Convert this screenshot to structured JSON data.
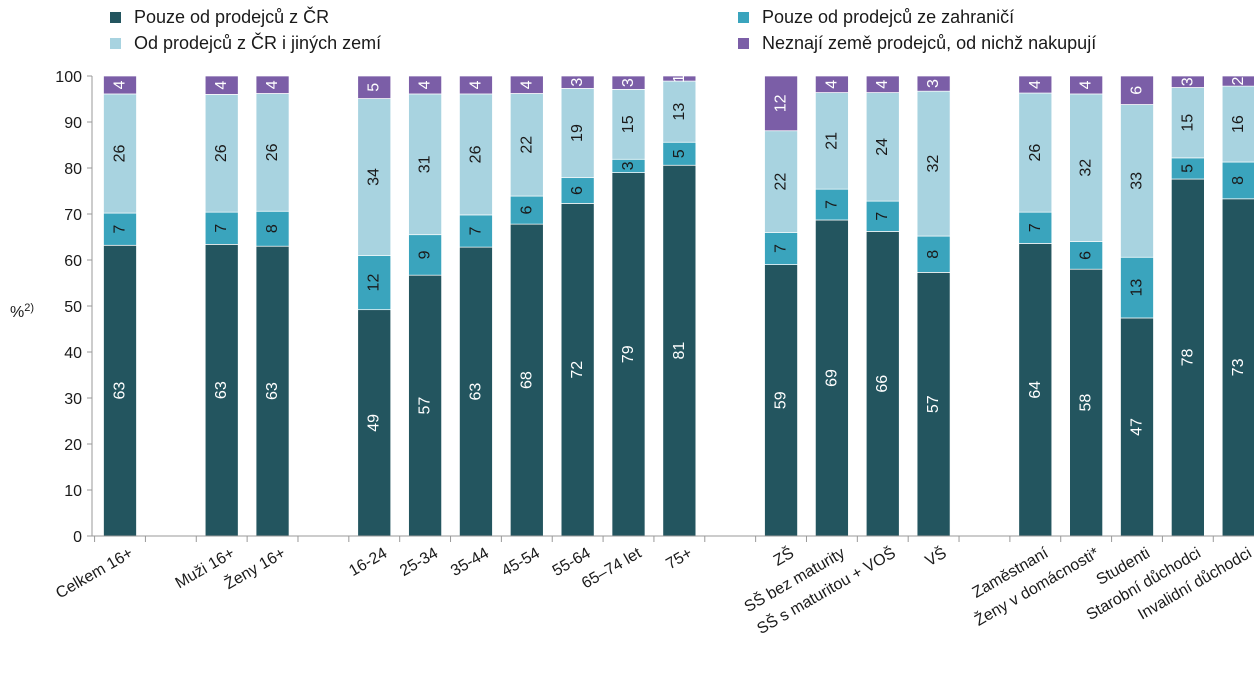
{
  "chart_data": {
    "type": "bar",
    "stacked": true,
    "title": "",
    "xlabel": "",
    "ylabel": "%",
    "ylabel_sup": "2)",
    "ylim": [
      0,
      100
    ],
    "yticks": [
      0,
      10,
      20,
      30,
      40,
      50,
      60,
      70,
      80,
      90,
      100
    ],
    "grid": false,
    "legend_position": "top",
    "categories": [
      "Celkem 16+",
      "Muži 16+",
      "Ženy 16+",
      "16-24",
      "25-34",
      "35-44",
      "45-54",
      "55-64",
      "65–74 let",
      "75+",
      "ZŠ",
      "SŠ bez maturity",
      "SŠ s maturitou + VOŠ",
      "VŠ",
      "Zaměstnaní",
      "Ženy v domácnosti*",
      "Studenti",
      "Starobní důchodci",
      "Invalidní důchodci"
    ],
    "groups": [
      [
        0
      ],
      [
        1,
        2
      ],
      [
        3,
        4,
        5,
        6,
        7,
        8,
        9
      ],
      [
        10,
        11,
        12,
        13
      ],
      [
        14,
        15,
        16,
        17,
        18
      ]
    ],
    "series": [
      {
        "name": "Pouze od prodejců z ČR",
        "color": "#23555f",
        "label_color": "#ffffff",
        "values": [
          63.2,
          63.4,
          63.0,
          49.2,
          56.7,
          62.8,
          67.8,
          72.3,
          79.0,
          80.6,
          59.0,
          68.7,
          66.2,
          57.3,
          63.6,
          58.0,
          47.4,
          77.6,
          73.3
        ],
        "labels": [
          "63",
          "63",
          "63",
          "49",
          "57",
          "63",
          "68",
          "72",
          "79",
          "81",
          "59",
          "69",
          "66",
          "57",
          "64",
          "58",
          "47",
          "78",
          "73"
        ]
      },
      {
        "name": "Pouze od prodejců ze zahraničí",
        "color": "#3aa4bd",
        "label_color": "#1a1a1a",
        "values": [
          7.0,
          7.0,
          7.6,
          11.8,
          8.8,
          7.0,
          6.1,
          5.6,
          2.9,
          5.0,
          7.0,
          6.7,
          6.6,
          7.9,
          6.8,
          6.0,
          13.2,
          4.6,
          8.0
        ],
        "labels": [
          "7",
          "7",
          "8",
          "12",
          "9",
          "7",
          "6",
          "6",
          "3",
          "5",
          "7",
          "7",
          "7",
          "8",
          "7",
          "6",
          "13",
          "5",
          "8"
        ]
      },
      {
        "name": "Od prodejců z ČR i jiných zemí",
        "color": "#a8d3e0",
        "label_color": "#1a1a1a",
        "values": [
          25.9,
          25.6,
          25.6,
          34.1,
          30.6,
          26.3,
          22.3,
          19.4,
          15.2,
          13.3,
          22.1,
          21.0,
          23.6,
          31.5,
          25.9,
          32.1,
          33.2,
          15.3,
          16.5
        ],
        "labels": [
          "26",
          "26",
          "26",
          "34",
          "31",
          "26",
          "22",
          "19",
          "15",
          "13",
          "22",
          "21",
          "24",
          "32",
          "26",
          "32",
          "33",
          "15",
          "16"
        ]
      },
      {
        "name": "Neznají země prodejců, od nichž nakupují",
        "color": "#7b5ea7",
        "label_color": "#ffffff",
        "values": [
          3.9,
          4.0,
          3.8,
          4.9,
          3.9,
          3.9,
          3.8,
          2.7,
          2.9,
          1.1,
          11.9,
          3.6,
          3.6,
          3.3,
          3.7,
          3.9,
          6.2,
          2.5,
          2.2
        ],
        "labels": [
          "4",
          "4",
          "4",
          "5",
          "4",
          "4",
          "4",
          "3",
          "3",
          "1",
          "12",
          "4",
          "4",
          "3",
          "4",
          "4",
          "6",
          "3",
          "2"
        ]
      }
    ]
  }
}
